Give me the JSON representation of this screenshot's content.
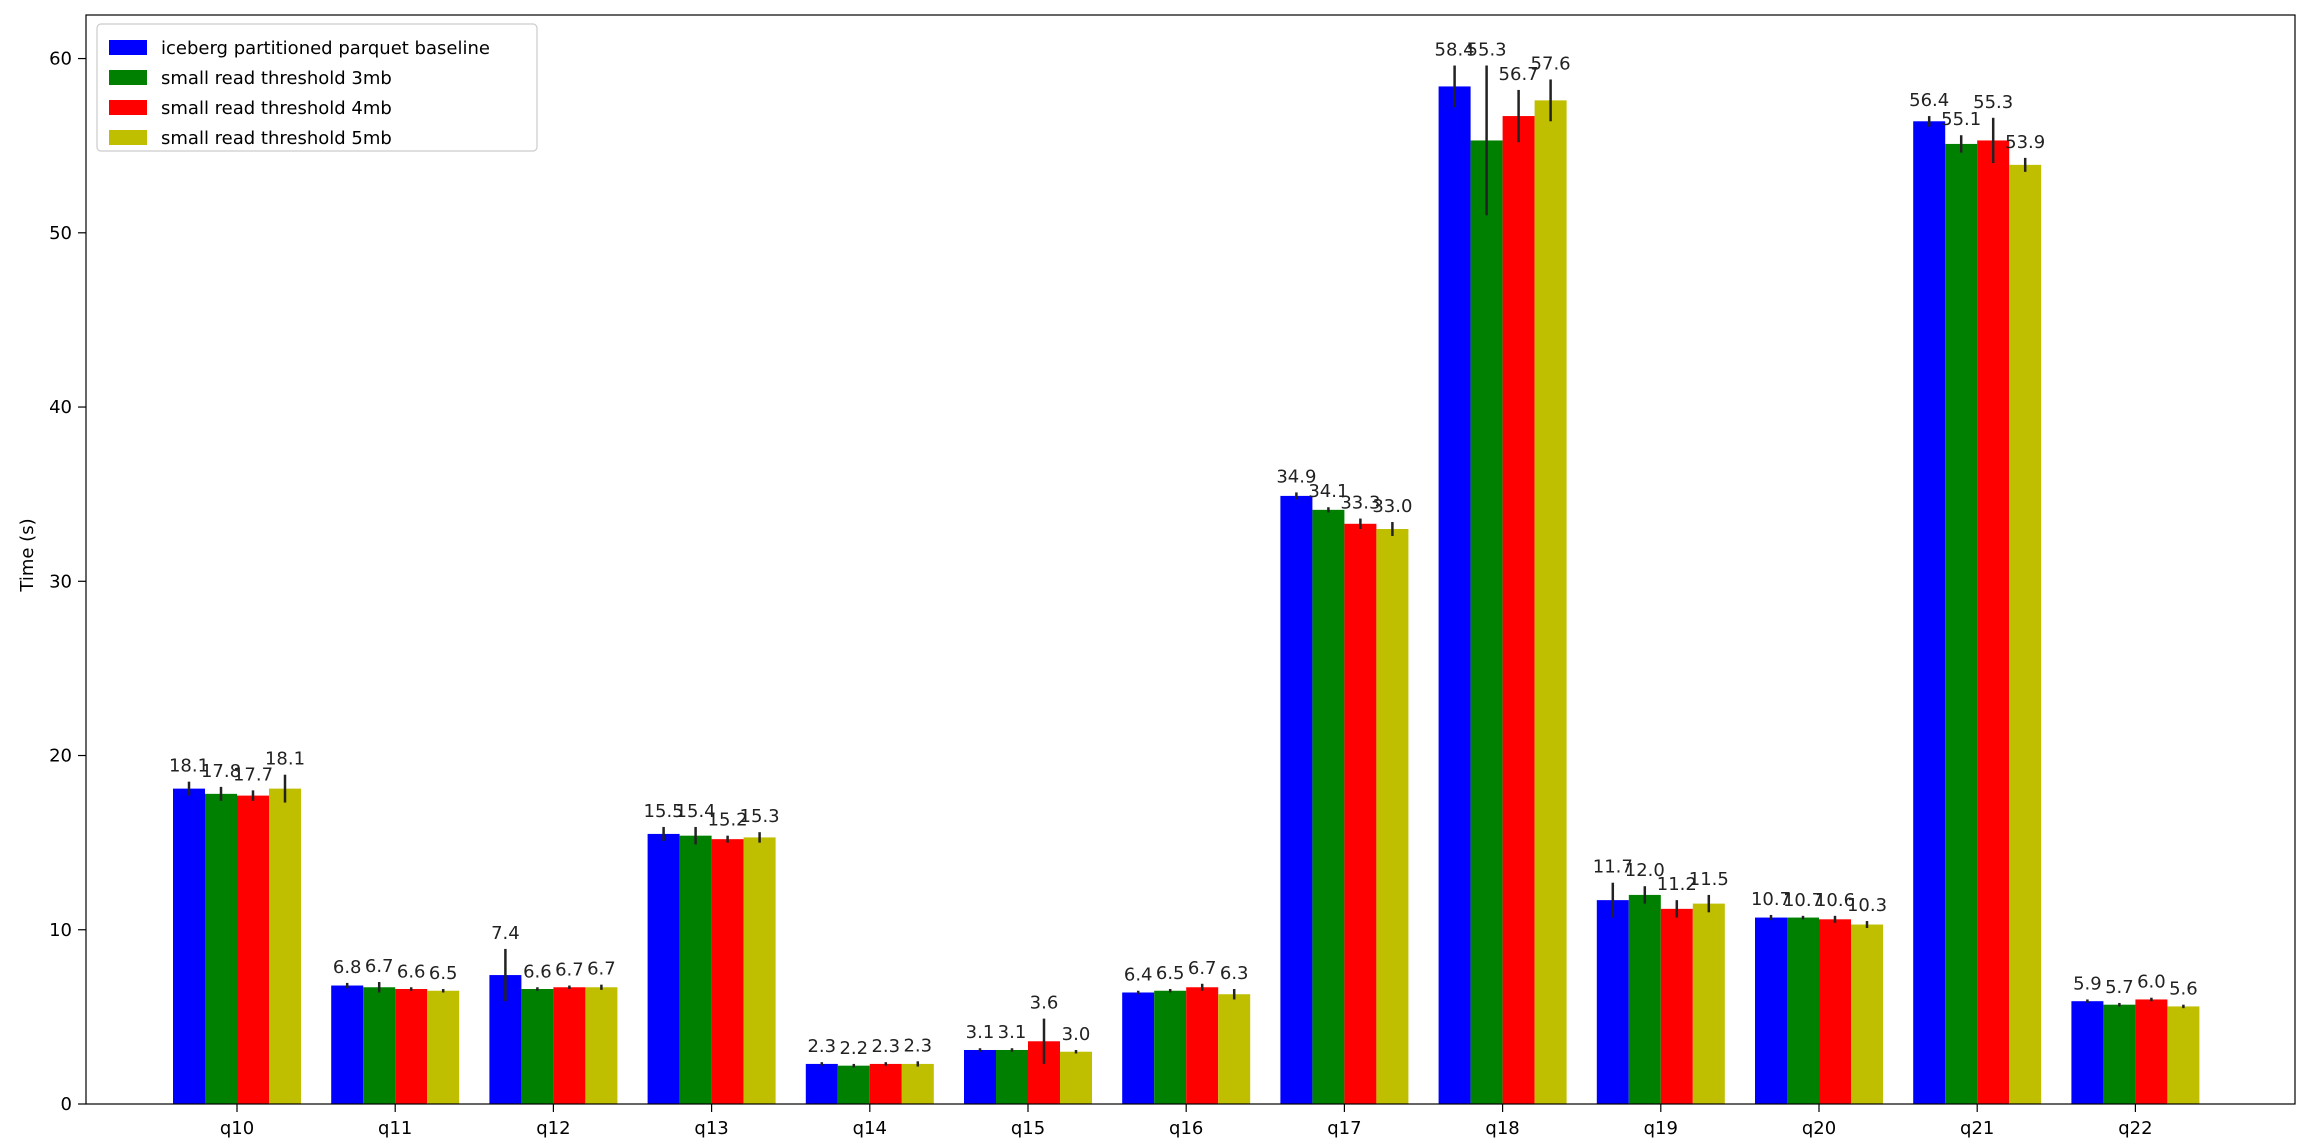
{
  "chart_data": {
    "type": "bar",
    "title": "",
    "xlabel": "",
    "ylabel": "Time (s)",
    "ylim": [
      0,
      62.5
    ],
    "yticks": [
      0,
      10,
      20,
      30,
      40,
      50,
      60
    ],
    "grid": false,
    "legend_position": "top-left",
    "categories": [
      "q10",
      "q11",
      "q12",
      "q13",
      "q14",
      "q15",
      "q16",
      "q17",
      "q18",
      "q19",
      "q20",
      "q21",
      "q22"
    ],
    "series": [
      {
        "name": "iceberg partitioned parquet baseline",
        "color": "#0000ff",
        "values": [
          18.1,
          6.8,
          7.4,
          15.5,
          2.3,
          3.1,
          6.4,
          34.9,
          58.4,
          11.7,
          10.7,
          56.4,
          5.9
        ],
        "labels": [
          "18.1",
          "6.8",
          "7.4",
          "15.5",
          "2.3",
          "3.1",
          "6.4",
          "34.9",
          "58.4",
          "11.7",
          "10.7",
          "56.4",
          "5.9"
        ],
        "errors": [
          0.4,
          0.15,
          1.5,
          0.4,
          0.1,
          0.1,
          0.1,
          0.2,
          1.2,
          1.0,
          0.15,
          0.3,
          0.1
        ]
      },
      {
        "name": "small read threshold 3mb",
        "color": "#008000",
        "values": [
          17.8,
          6.7,
          6.6,
          15.4,
          2.2,
          3.1,
          6.5,
          34.1,
          55.3,
          12.0,
          10.7,
          55.1,
          5.7
        ],
        "labels": [
          "17.8",
          "6.7",
          "6.6",
          "15.4",
          "2.2",
          "3.1",
          "6.5",
          "34.1",
          "55.3",
          "12.0",
          "10.7",
          "55.1",
          "5.7"
        ],
        "errors": [
          0.4,
          0.3,
          0.1,
          0.5,
          0.1,
          0.1,
          0.1,
          0.15,
          4.3,
          0.5,
          0.1,
          0.5,
          0.1
        ]
      },
      {
        "name": "small read threshold 4mb",
        "color": "#ff0000",
        "values": [
          17.7,
          6.6,
          6.7,
          15.2,
          2.3,
          3.6,
          6.7,
          33.3,
          56.7,
          11.2,
          10.6,
          55.3,
          6.0
        ],
        "labels": [
          "17.7",
          "6.6",
          "6.7",
          "15.2",
          "2.3",
          "3.6",
          "6.7",
          "33.3",
          "56.7",
          "11.2",
          "10.6",
          "55.3",
          "6.0"
        ],
        "errors": [
          0.3,
          0.1,
          0.1,
          0.2,
          0.1,
          1.3,
          0.2,
          0.3,
          1.5,
          0.5,
          0.2,
          1.3,
          0.1
        ]
      },
      {
        "name": "small read threshold 5mb",
        "color": "#bfbf00",
        "values": [
          18.1,
          6.5,
          6.7,
          15.3,
          2.3,
          3.0,
          6.3,
          33.0,
          57.6,
          11.5,
          10.3,
          53.9,
          5.6
        ],
        "labels": [
          "18.1",
          "6.5",
          "6.7",
          "15.3",
          "2.3",
          "3.0",
          "6.3",
          "33.0",
          "57.6",
          "11.5",
          "10.3",
          "53.9",
          "5.6"
        ],
        "errors": [
          0.8,
          0.1,
          0.15,
          0.3,
          0.15,
          0.1,
          0.3,
          0.4,
          1.2,
          0.5,
          0.2,
          0.4,
          0.1
        ]
      }
    ]
  }
}
